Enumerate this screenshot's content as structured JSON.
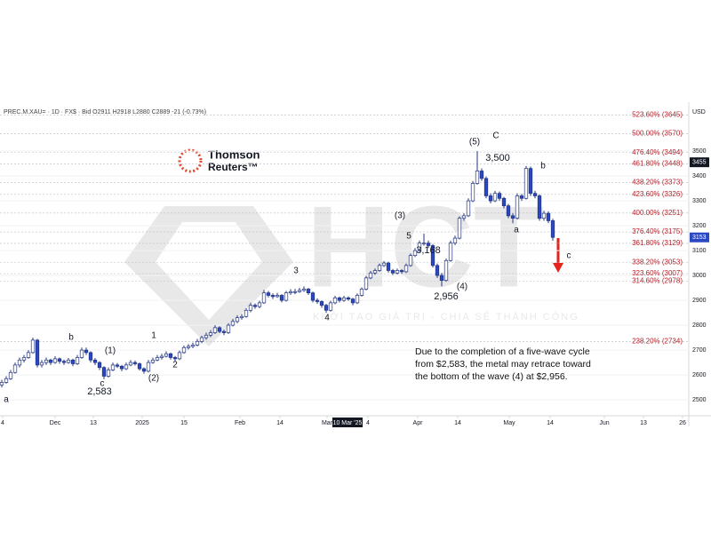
{
  "chart_data": {
    "type": "candlestick",
    "title": "PREC.M.XAU= · 1D · FX$ · Bid   O2911 H2918 L2880 C2889 -21 (-0.73%)",
    "currency": "USD",
    "candles": [
      [
        2560,
        2580,
        2550,
        2570
      ],
      [
        2570,
        2595,
        2565,
        2585
      ],
      [
        2585,
        2620,
        2580,
        2610
      ],
      [
        2610,
        2650,
        2605,
        2640
      ],
      [
        2640,
        2670,
        2630,
        2660
      ],
      [
        2660,
        2680,
        2650,
        2670
      ],
      [
        2670,
        2700,
        2665,
        2690
      ],
      [
        2690,
        2750,
        2685,
        2740
      ],
      [
        2740,
        2745,
        2630,
        2640
      ],
      [
        2640,
        2660,
        2630,
        2650
      ],
      [
        2650,
        2670,
        2640,
        2660
      ],
      [
        2660,
        2665,
        2640,
        2650
      ],
      [
        2650,
        2675,
        2645,
        2665
      ],
      [
        2665,
        2670,
        2645,
        2655
      ],
      [
        2655,
        2662,
        2640,
        2650
      ],
      [
        2650,
        2668,
        2645,
        2660
      ],
      [
        2660,
        2665,
        2635,
        2645
      ],
      [
        2645,
        2680,
        2640,
        2670
      ],
      [
        2670,
        2710,
        2665,
        2700
      ],
      [
        2700,
        2710,
        2680,
        2690
      ],
      [
        2690,
        2695,
        2650,
        2660
      ],
      [
        2660,
        2668,
        2640,
        2650
      ],
      [
        2650,
        2655,
        2620,
        2630
      ],
      [
        2630,
        2635,
        2583,
        2595
      ],
      [
        2595,
        2630,
        2590,
        2620
      ],
      [
        2620,
        2650,
        2615,
        2640
      ],
      [
        2640,
        2648,
        2628,
        2635
      ],
      [
        2635,
        2640,
        2615,
        2625
      ],
      [
        2625,
        2650,
        2620,
        2640
      ],
      [
        2640,
        2660,
        2635,
        2650
      ],
      [
        2650,
        2658,
        2638,
        2645
      ],
      [
        2645,
        2650,
        2618,
        2625
      ],
      [
        2625,
        2630,
        2605,
        2615
      ],
      [
        2615,
        2660,
        2610,
        2650
      ],
      [
        2650,
        2670,
        2645,
        2660
      ],
      [
        2660,
        2680,
        2655,
        2670
      ],
      [
        2670,
        2685,
        2662,
        2675
      ],
      [
        2675,
        2695,
        2670,
        2685
      ],
      [
        2685,
        2690,
        2662,
        2670
      ],
      [
        2670,
        2676,
        2655,
        2665
      ],
      [
        2665,
        2698,
        2660,
        2690
      ],
      [
        2690,
        2718,
        2685,
        2710
      ],
      [
        2710,
        2724,
        2702,
        2715
      ],
      [
        2715,
        2730,
        2708,
        2720
      ],
      [
        2720,
        2745,
        2715,
        2735
      ],
      [
        2735,
        2758,
        2728,
        2750
      ],
      [
        2750,
        2770,
        2742,
        2760
      ],
      [
        2760,
        2780,
        2752,
        2770
      ],
      [
        2770,
        2800,
        2765,
        2790
      ],
      [
        2790,
        2796,
        2768,
        2775
      ],
      [
        2775,
        2782,
        2760,
        2770
      ],
      [
        2770,
        2808,
        2765,
        2800
      ],
      [
        2800,
        2825,
        2795,
        2815
      ],
      [
        2815,
        2840,
        2808,
        2830
      ],
      [
        2830,
        2845,
        2822,
        2835
      ],
      [
        2835,
        2868,
        2830,
        2860
      ],
      [
        2860,
        2890,
        2852,
        2880
      ],
      [
        2880,
        2888,
        2866,
        2875
      ],
      [
        2875,
        2898,
        2868,
        2890
      ],
      [
        2890,
        2942,
        2885,
        2930
      ],
      [
        2930,
        2938,
        2912,
        2920
      ],
      [
        2920,
        2928,
        2905,
        2915
      ],
      [
        2915,
        2930,
        2910,
        2920
      ],
      [
        2920,
        2925,
        2892,
        2900
      ],
      [
        2900,
        2938,
        2895,
        2930
      ],
      [
        2930,
        2945,
        2922,
        2935
      ],
      [
        2935,
        2946,
        2925,
        2935
      ],
      [
        2935,
        2950,
        2930,
        2940
      ],
      [
        2940,
        2956,
        2934,
        2945
      ],
      [
        2945,
        2950,
        2922,
        2930
      ],
      [
        2930,
        2935,
        2892,
        2900
      ],
      [
        2900,
        2908,
        2886,
        2895
      ],
      [
        2895,
        2900,
        2870,
        2880
      ],
      [
        2880,
        2886,
        2850,
        2860
      ],
      [
        2860,
        2898,
        2855,
        2890
      ],
      [
        2890,
        2918,
        2884,
        2910
      ],
      [
        2910,
        2915,
        2892,
        2900
      ],
      [
        2900,
        2918,
        2894,
        2910
      ],
      [
        2910,
        2916,
        2898,
        2905
      ],
      [
        2905,
        2910,
        2880,
        2890
      ],
      [
        2890,
        2928,
        2885,
        2920
      ],
      [
        2920,
        2952,
        2915,
        2945
      ],
      [
        2945,
        2998,
        2940,
        2990
      ],
      [
        2990,
        3018,
        2985,
        3010
      ],
      [
        3010,
        3028,
        3002,
        3020
      ],
      [
        3020,
        3048,
        3015,
        3040
      ],
      [
        3040,
        3058,
        3034,
        3050
      ],
      [
        3050,
        3055,
        3012,
        3020
      ],
      [
        3020,
        3026,
        3002,
        3010
      ],
      [
        3010,
        3028,
        3004,
        3020
      ],
      [
        3020,
        3025,
        3006,
        3015
      ],
      [
        3015,
        3048,
        3010,
        3040
      ],
      [
        3040,
        3088,
        3035,
        3080
      ],
      [
        3080,
        3110,
        3074,
        3100
      ],
      [
        3100,
        3140,
        3095,
        3130
      ],
      [
        3130,
        3168,
        3120,
        3130
      ],
      [
        3130,
        3140,
        3110,
        3120
      ],
      [
        3120,
        3126,
        3032,
        3040
      ],
      [
        3040,
        3048,
        2990,
        3000
      ],
      [
        3000,
        3010,
        2956,
        2980
      ],
      [
        2980,
        3068,
        2975,
        3060
      ],
      [
        3060,
        3140,
        3055,
        3130
      ],
      [
        3130,
        3160,
        3122,
        3150
      ],
      [
        3150,
        3238,
        3145,
        3230
      ],
      [
        3230,
        3250,
        3220,
        3240
      ],
      [
        3240,
        3310,
        3235,
        3300
      ],
      [
        3300,
        3380,
        3295,
        3370
      ],
      [
        3370,
        3500,
        3365,
        3420
      ],
      [
        3420,
        3430,
        3380,
        3390
      ],
      [
        3390,
        3398,
        3310,
        3320
      ],
      [
        3320,
        3330,
        3290,
        3300
      ],
      [
        3300,
        3340,
        3295,
        3330
      ],
      [
        3330,
        3338,
        3300,
        3310
      ],
      [
        3310,
        3316,
        3270,
        3280
      ],
      [
        3280,
        3288,
        3230,
        3240
      ],
      [
        3240,
        3250,
        3210,
        3230
      ],
      [
        3230,
        3330,
        3225,
        3320
      ],
      [
        3320,
        3328,
        3300,
        3310
      ],
      [
        3310,
        3440,
        3305,
        3430
      ],
      [
        3430,
        3438,
        3320,
        3330
      ],
      [
        3330,
        3340,
        3310,
        3320
      ],
      [
        3320,
        3326,
        3220,
        3230
      ],
      [
        3230,
        3260,
        3220,
        3250
      ],
      [
        3250,
        3258,
        3210,
        3220
      ],
      [
        3220,
        3228,
        3140,
        3153
      ]
    ],
    "up_color": "#ffffff",
    "down_color": "#2a48c4",
    "edge_color": "#22347f",
    "xlim": [
      -0.4,
      154.6
    ],
    "xticks": [
      {
        "value": 0.2,
        "label": "4"
      },
      {
        "value": 12,
        "label": "Dec"
      },
      {
        "value": 20.6,
        "label": "13"
      },
      {
        "value": 31.6,
        "label": "2025"
      },
      {
        "value": 41,
        "label": "15"
      },
      {
        "value": 53.6,
        "label": "Feb"
      },
      {
        "value": 62.6,
        "label": "14"
      },
      {
        "value": 73.2,
        "label": "Mar"
      },
      {
        "value": 82.4,
        "label": "4"
      },
      {
        "value": 93.6,
        "label": "Apr"
      },
      {
        "value": 102.6,
        "label": "14"
      },
      {
        "value": 114.2,
        "label": "May"
      },
      {
        "value": 123.4,
        "label": "14"
      },
      {
        "value": 135.6,
        "label": "Jun"
      },
      {
        "value": 144.4,
        "label": "13"
      },
      {
        "value": 153.2,
        "label": "26"
      }
    ],
    "crosshair_x": {
      "value": 77.8,
      "label": "10 Mar '25"
    },
    "ylim": [
      2436,
      3686
    ],
    "yticks": [
      2500,
      2600,
      2700,
      2800,
      2900,
      3000,
      3100,
      3200,
      3300,
      3400,
      3500
    ],
    "price_badges": [
      3455,
      3153
    ],
    "levels": [
      {
        "value": 3645,
        "label": "523.60% (3645)"
      },
      {
        "value": 3570,
        "label": "500.00% (3570)"
      },
      {
        "value": 3494,
        "label": "476.40% (3494)"
      },
      {
        "value": 3448,
        "label": "461.80% (3448)"
      },
      {
        "value": 3373,
        "label": "438.20% (3373)"
      },
      {
        "value": 3326,
        "label": "423.60% (3326)"
      },
      {
        "value": 3251,
        "label": "400.00% (3251)"
      },
      {
        "value": 3175,
        "label": "376.40% (3175)"
      },
      {
        "value": 3129,
        "label": "361.80% (3129)"
      },
      {
        "value": 3053,
        "label": "338.20% (3053)"
      },
      {
        "value": 3007,
        "label": "323.60% (3007)"
      },
      {
        "value": 2978,
        "label": "314.60% (2978)"
      },
      {
        "value": 2734,
        "label": "238.20% (2734)"
      }
    ],
    "annotations": [
      "a",
      "b",
      "(1)",
      "c",
      "2,583",
      "(2)",
      "1",
      "2",
      "3",
      "4",
      "(3)",
      "5",
      "3,168",
      "(4)",
      "2,956",
      "(5)",
      "C",
      "3,500",
      "a",
      "b",
      "c"
    ],
    "note": "Due to the completion of a five-wave cycle from $2,583, the metal may retrace toward the bottom of the wave (4) at $2,956."
  },
  "logo": {
    "name": "Thomson",
    "sub": "Reuters™"
  },
  "watermark": {
    "text": "HCT",
    "tagline": "KHỞI TẠO GIÁ TRỊ - CHIA SẺ THÀNH CÔNG"
  }
}
